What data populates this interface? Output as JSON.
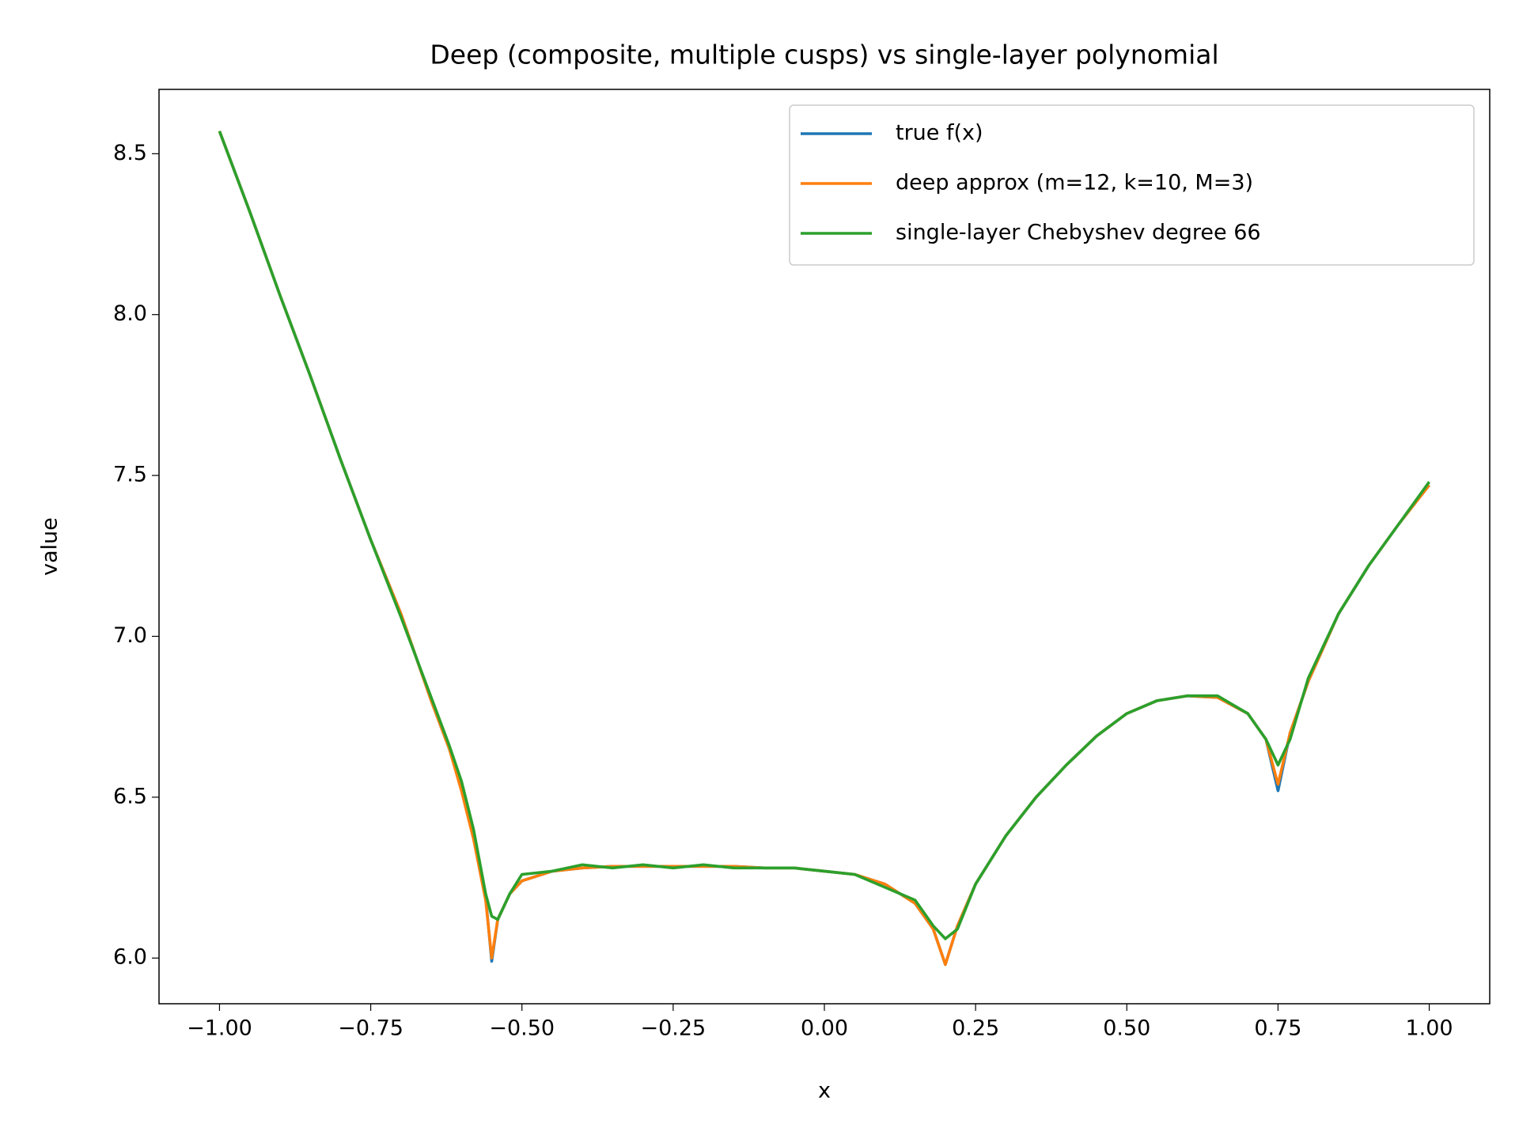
{
  "chart_data": {
    "type": "line",
    "title": "Deep (composite, multiple cusps) vs single-layer polynomial",
    "x_label": "x",
    "y_label": "value",
    "x": [
      -1,
      -0.95,
      -0.9,
      -0.85,
      -0.8,
      -0.75,
      -0.7,
      -0.65,
      -0.62,
      -0.6,
      -0.58,
      -0.56,
      -0.55,
      -0.54,
      -0.52,
      -0.5,
      -0.45,
      -0.4,
      -0.35,
      -0.3,
      -0.25,
      -0.2,
      -0.15,
      -0.1,
      -0.05,
      0,
      0.05,
      0.1,
      0.15,
      0.18,
      0.2,
      0.22,
      0.25,
      0.3,
      0.35,
      0.4,
      0.45,
      0.5,
      0.55,
      0.6,
      0.65,
      0.7,
      0.73,
      0.75,
      0.77,
      0.8,
      0.85,
      0.9,
      0.95,
      1.0
    ],
    "series": [
      {
        "name": "true f(x)",
        "color": "#1f77b4",
        "values": [
          8.57,
          8.32,
          8.06,
          7.81,
          7.55,
          7.3,
          7.07,
          6.8,
          6.65,
          6.53,
          6.38,
          6.19,
          5.99,
          6.12,
          6.2,
          6.24,
          6.27,
          6.28,
          6.285,
          6.285,
          6.285,
          6.285,
          6.285,
          6.28,
          6.28,
          6.27,
          6.26,
          6.23,
          6.17,
          6.09,
          5.98,
          6.1,
          6.23,
          6.38,
          6.5,
          6.6,
          6.69,
          6.76,
          6.8,
          6.815,
          6.81,
          6.76,
          6.68,
          6.52,
          6.7,
          6.86,
          7.07,
          7.22,
          7.35,
          7.47
        ]
      },
      {
        "name": "deep approx (m=12, k=10, M=3)",
        "color": "#ff7f0e",
        "values": [
          8.57,
          8.32,
          8.06,
          7.81,
          7.55,
          7.3,
          7.07,
          6.8,
          6.65,
          6.52,
          6.37,
          6.18,
          6.0,
          6.12,
          6.2,
          6.24,
          6.27,
          6.28,
          6.285,
          6.285,
          6.285,
          6.285,
          6.285,
          6.28,
          6.28,
          6.27,
          6.26,
          6.23,
          6.17,
          6.09,
          5.98,
          6.1,
          6.23,
          6.38,
          6.5,
          6.6,
          6.69,
          6.76,
          6.8,
          6.815,
          6.81,
          6.76,
          6.68,
          6.54,
          6.7,
          6.86,
          7.07,
          7.22,
          7.35,
          7.47
        ]
      },
      {
        "name": "single-layer Chebyshev degree 66",
        "color": "#2ca02c",
        "values": [
          8.57,
          8.32,
          8.06,
          7.81,
          7.55,
          7.3,
          7.06,
          6.81,
          6.66,
          6.55,
          6.4,
          6.2,
          6.13,
          6.12,
          6.2,
          6.26,
          6.27,
          6.29,
          6.28,
          6.29,
          6.28,
          6.29,
          6.28,
          6.28,
          6.28,
          6.27,
          6.26,
          6.22,
          6.18,
          6.1,
          6.06,
          6.09,
          6.23,
          6.38,
          6.5,
          6.6,
          6.69,
          6.76,
          6.8,
          6.815,
          6.815,
          6.76,
          6.68,
          6.6,
          6.68,
          6.87,
          7.07,
          7.22,
          7.35,
          7.48
        ]
      }
    ],
    "xlim": [
      -1.1,
      1.1
    ],
    "ylim": [
      5.858,
      8.7
    ],
    "xticks": [
      {
        "value": -1,
        "label": "−1.00"
      },
      {
        "value": -0.75,
        "label": "−0.75"
      },
      {
        "value": -0.5,
        "label": "−0.50"
      },
      {
        "value": -0.25,
        "label": "−0.25"
      },
      {
        "value": 0,
        "label": "0.00"
      },
      {
        "value": 0.25,
        "label": "0.25"
      },
      {
        "value": 0.5,
        "label": "0.50"
      },
      {
        "value": 0.75,
        "label": "0.75"
      },
      {
        "value": 1,
        "label": "1.00"
      }
    ],
    "yticks": [
      {
        "value": 6,
        "label": "6.0"
      },
      {
        "value": 6.5,
        "label": "6.5"
      },
      {
        "value": 7,
        "label": "7.0"
      },
      {
        "value": 7.5,
        "label": "7.5"
      },
      {
        "value": 8,
        "label": "8.0"
      },
      {
        "value": 8.5,
        "label": "8.5"
      }
    ],
    "legend": "upper right"
  }
}
